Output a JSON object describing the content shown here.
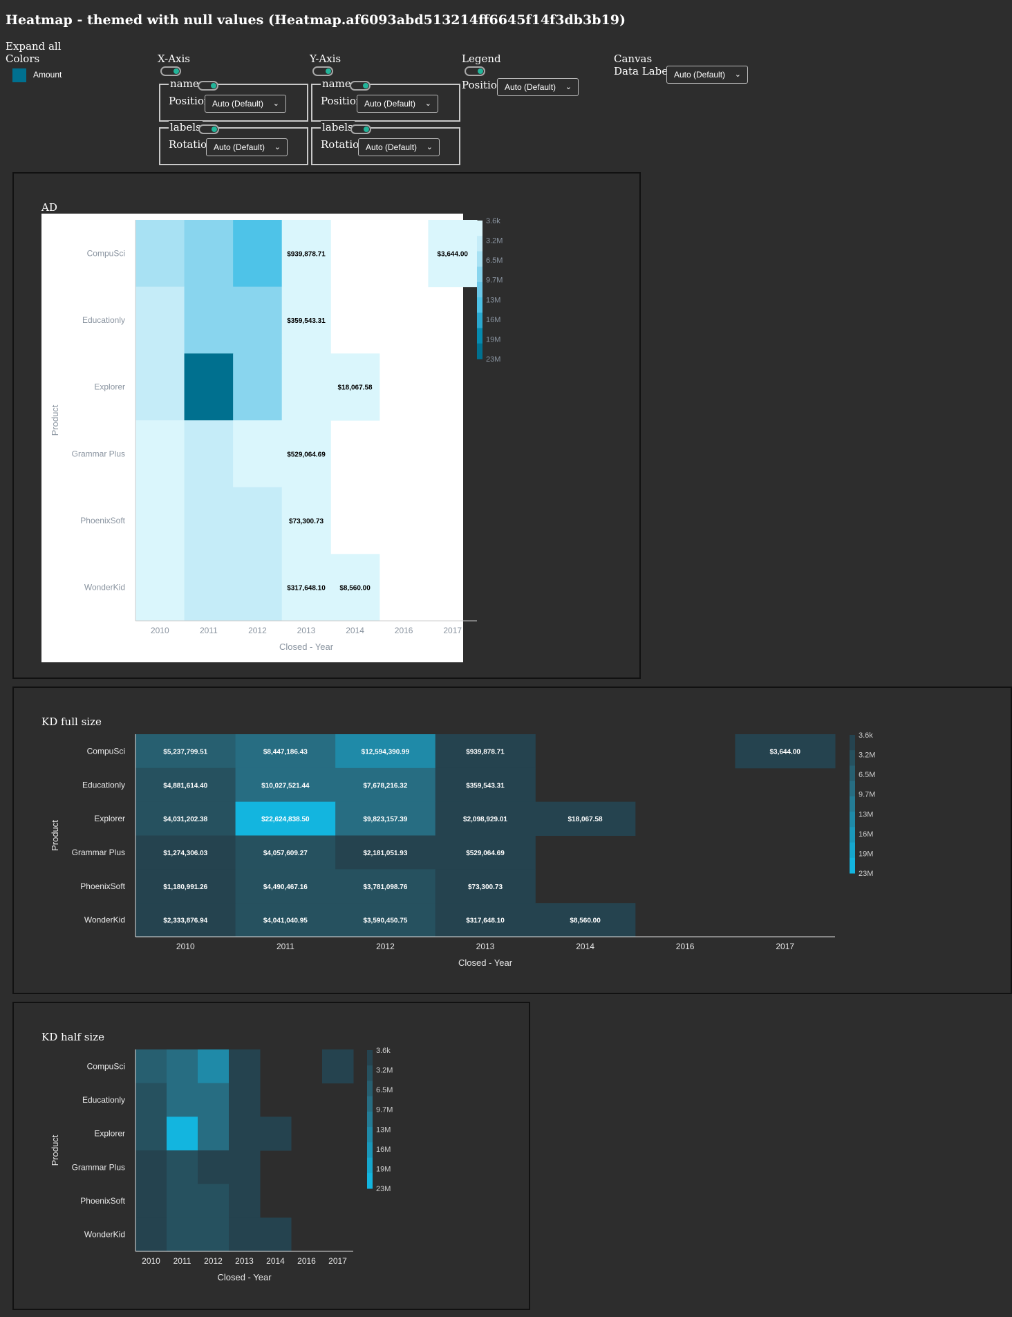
{
  "page": {
    "title": "Heatmap - themed with null values (Heatmap.af6093abd513214ff6645f14f3db3b19)",
    "expand_all": "Expand all",
    "colors_label": "Colors",
    "legend_item": "Amount",
    "legend_color": "#00708f",
    "xaxis_label": "X-Axis",
    "yaxis_label": "Y-Axis",
    "legend_label": "Legend",
    "canvas_label": "Canvas",
    "name_label": "name",
    "labels_label": "labels",
    "position_label": "Position",
    "rotation_label": "Rotation",
    "data_labels_label": "Data Labels",
    "select_value": "Auto (Default)",
    "accent_color": "#23b59a"
  },
  "charts": [
    {
      "title": "AD"
    },
    {
      "title": "KD full size"
    },
    {
      "title": "KD half size"
    }
  ],
  "chart_data": {
    "type": "heatmap",
    "title": "",
    "xlabel": "Closed - Year",
    "ylabel": "Product",
    "x": [
      "2010",
      "2011",
      "2012",
      "2013",
      "2014",
      "2016",
      "2017"
    ],
    "y": [
      "CompuSci",
      "Educationly",
      "Explorer",
      "Grammar Plus",
      "PhoenixSoft",
      "WonderKid"
    ],
    "values": [
      [
        5237799.51,
        8447186.43,
        12594390.99,
        939878.71,
        null,
        null,
        3644.0
      ],
      [
        4881614.4,
        10027521.44,
        7678216.32,
        359543.31,
        null,
        null,
        null
      ],
      [
        4031202.38,
        22624838.5,
        9823157.39,
        2098929.01,
        18067.58,
        null,
        null
      ],
      [
        1274306.03,
        4057609.27,
        2181051.93,
        529064.69,
        null,
        null,
        null
      ],
      [
        1180991.26,
        4490467.16,
        3781098.76,
        73300.73,
        null,
        null,
        null
      ],
      [
        2333876.94,
        4041040.95,
        3590450.75,
        317648.1,
        8560.0,
        null,
        null
      ]
    ],
    "labels": [
      [
        "$5,237,799.51",
        "$8,447,186.43",
        "$12,594,390.99",
        "$939,878.71",
        "",
        "",
        "$3,644.00"
      ],
      [
        "$4,881,614.40",
        "$10,027,521.44",
        "$7,678,216.32",
        "$359,543.31",
        "",
        "",
        ""
      ],
      [
        "$4,031,202.38",
        "$22,624,838.50",
        "$9,823,157.39",
        "$2,098,929.01",
        "$18,067.58",
        "",
        ""
      ],
      [
        "$1,274,306.03",
        "$4,057,609.27",
        "$2,181,051.93",
        "$529,064.69",
        "",
        "",
        ""
      ],
      [
        "$1,180,991.26",
        "$4,490,467.16",
        "$3,781,098.76",
        "$73,300.73",
        "",
        "",
        ""
      ],
      [
        "$2,333,876.94",
        "$4,041,040.95",
        "$3,590,450.75",
        "$317,648.10",
        "$8,560.00",
        "",
        ""
      ]
    ],
    "ad_visible_labels": [
      [
        "",
        "",
        "",
        "$939,878.71",
        "",
        "",
        "$3,644.00"
      ],
      [
        "",
        "",
        "",
        "$359,543.31",
        "",
        "",
        ""
      ],
      [
        "",
        "",
        "",
        "",
        "$18,067.58",
        "",
        ""
      ],
      [
        "",
        "",
        "",
        "$529,064.69",
        "",
        "",
        ""
      ],
      [
        "",
        "",
        "",
        "$73,300.73",
        "",
        "",
        ""
      ],
      [
        "",
        "",
        "",
        "$317,648.10",
        "$8,560.00",
        "",
        ""
      ]
    ],
    "color_scale": {
      "ticks": [
        "3.6k",
        "3.2M",
        "6.5M",
        "9.7M",
        "13M",
        "16M",
        "19M",
        "23M"
      ],
      "min": 3644.0,
      "max": 22624838.5,
      "ad_colors": [
        "#daf6fc",
        "#c5ecf8",
        "#a8e1f3",
        "#89d5ee",
        "#6bc8e9",
        "#4ec3e8",
        "#2aa8cf",
        "#058bb0",
        "#00708f"
      ],
      "kd_colors": [
        "#25434f",
        "#26515f",
        "#275f70",
        "#276d82",
        "#247c95",
        "#1f8aa8",
        "#1a98ba",
        "#16a7cd",
        "#13b5df"
      ]
    }
  }
}
